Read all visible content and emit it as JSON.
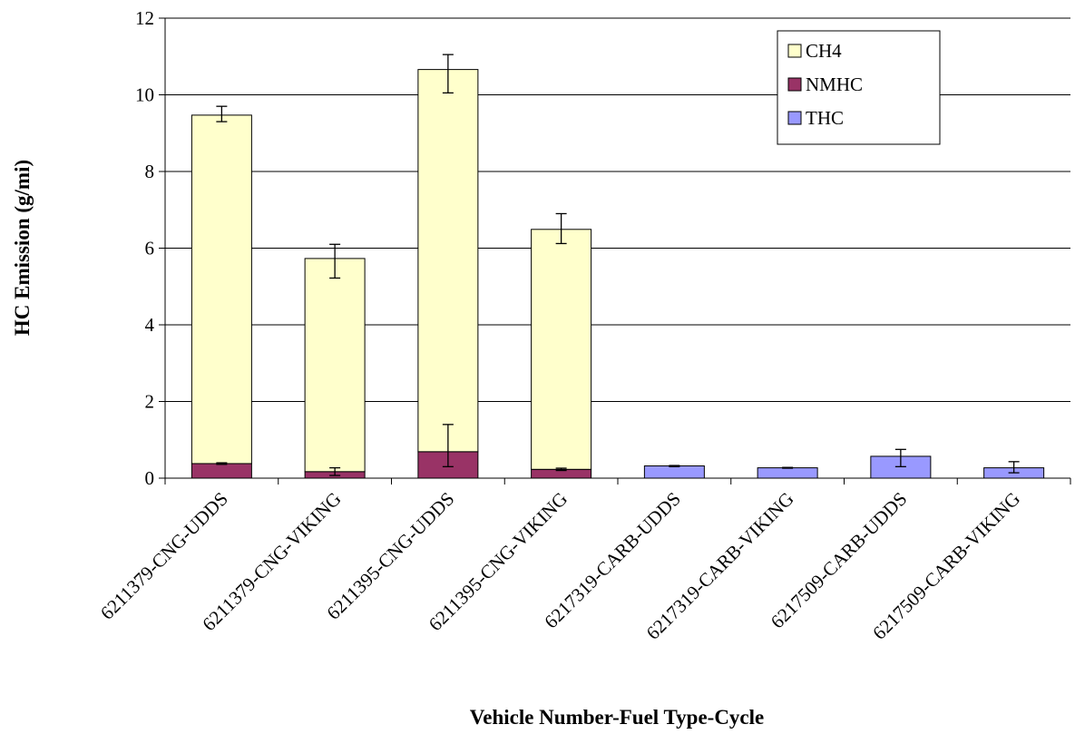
{
  "chart_data": {
    "type": "bar",
    "stacked": true,
    "title": "",
    "xlabel": "Vehicle Number-Fuel Type-Cycle",
    "ylabel": "HC Emission (g/mi)",
    "ylim": [
      0,
      12
    ],
    "yticks": [
      0,
      2,
      4,
      6,
      8,
      10,
      12
    ],
    "grid": true,
    "legend_position": "top-right",
    "categories": [
      "6211379-CNG-UDDS",
      "6211379-CNG-VIKING",
      "6211395-CNG-UDDS",
      "6211395-CNG-VIKING",
      "6217319-CARB-UDDS",
      "6217319-CARB-VIKING",
      "6217509-CARB-UDDS",
      "6217509-CARB-VIKING"
    ],
    "series": [
      {
        "name": "THC",
        "color": "#9999ff",
        "values": [
          0,
          0,
          0,
          0,
          0.32,
          0.27,
          0.57,
          0.27
        ],
        "error_low": [
          null,
          null,
          null,
          null,
          0.3,
          0.26,
          0.3,
          0.14
        ],
        "error_high": [
          null,
          null,
          null,
          null,
          0.33,
          0.28,
          0.75,
          0.43
        ]
      },
      {
        "name": "NMHC",
        "color": "#993366",
        "values": [
          0.38,
          0.17,
          0.69,
          0.23,
          0,
          0,
          0,
          0
        ],
        "error_low": [
          0.36,
          0.07,
          0.3,
          0.2,
          null,
          null,
          null,
          null
        ],
        "error_high": [
          0.4,
          0.27,
          1.4,
          0.26,
          null,
          null,
          null,
          null
        ]
      },
      {
        "name": "CH4",
        "color": "#ffffcc",
        "values": [
          9.09,
          5.56,
          9.97,
          6.26,
          0,
          0,
          0,
          0
        ],
        "error_low": [
          9.3,
          5.22,
          10.05,
          6.12,
          null,
          null,
          null,
          null
        ],
        "error_high": [
          9.7,
          6.1,
          11.05,
          6.9,
          null,
          null,
          null,
          null
        ]
      }
    ],
    "legend_order": [
      "CH4",
      "NMHC",
      "THC"
    ]
  }
}
